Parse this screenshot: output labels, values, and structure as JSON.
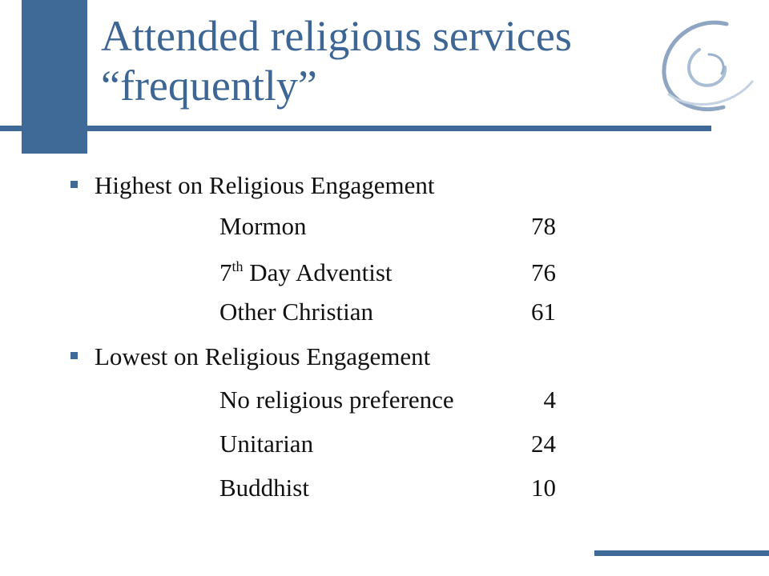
{
  "slide": {
    "title_line1": "Attended religious services",
    "title_line2": "“frequently”",
    "sections": [
      {
        "heading": "Highest on Religious Engagement",
        "rows": [
          {
            "name": "Mormon",
            "value": "78"
          },
          {
            "name_prefix": "7",
            "name_sup": "th",
            "name_suffix": " Day Adventist",
            "value": "76"
          },
          {
            "name": "Other Christian",
            "value": "61"
          }
        ]
      },
      {
        "heading": "Lowest on Religious Engagement",
        "rows": [
          {
            "name": "No religious preference",
            "value": "4"
          },
          {
            "name": "Unitarian",
            "value": "24"
          },
          {
            "name": "Buddhist",
            "value": "10"
          }
        ]
      }
    ]
  },
  "theme": {
    "accent_color": "#3f6997",
    "logo_icon": "swirl-logo-icon"
  }
}
